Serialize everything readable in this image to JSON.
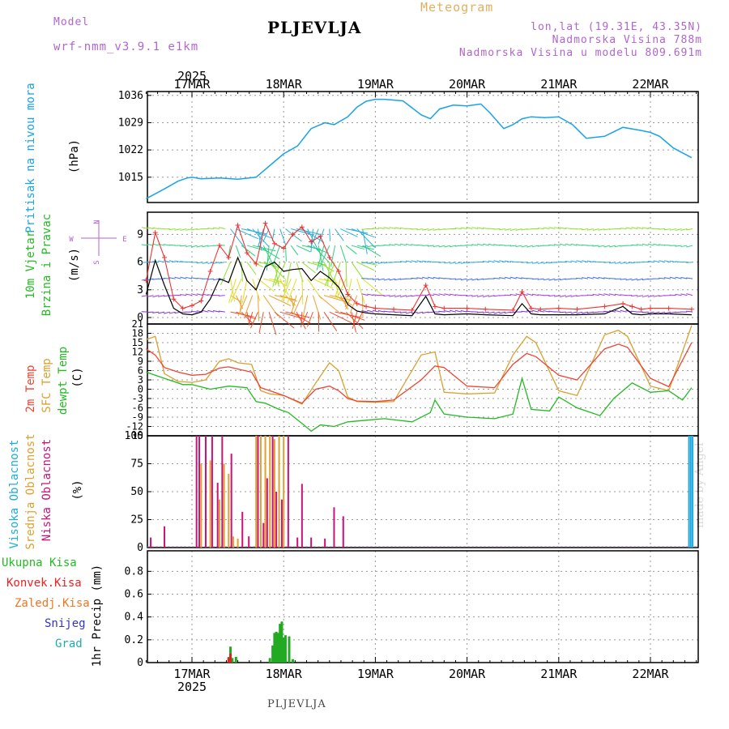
{
  "header": {
    "model_label": "Model",
    "model_name": "wrf-nmm_v3.9.1 e1km",
    "title": "Meteogram",
    "station": "PLJEVLJA",
    "coords": "lon,lat (19.31E, 43.35N)",
    "altitude": "Nadmorska Visina 788m",
    "model_altitude": "Nadmorska Visina u modelu 809.691m",
    "credit": "made by Angel"
  },
  "colors": {
    "pressure": "#1aa3e6",
    "speed": "#000000",
    "gust": "#ee3333",
    "temp2m": "#ee4433",
    "sfc": "#d9a030",
    "dewpt": "#22bb22",
    "high_cloud": "#22aadd",
    "mid_cloud": "#e0a030",
    "low_cloud": "#cc1177",
    "total_precip": "#22aa22",
    "conv_precip": "#dd2222",
    "grid": "#9a9a9a"
  },
  "chart_data": [
    {
      "type": "line",
      "panel": "pressure",
      "ylabel_lines": [
        "Pritisak na nivou mora",
        "(hPa)"
      ],
      "yticks": [
        1015,
        1022,
        1029,
        1036
      ],
      "ylim": [
        1008.5,
        1037
      ],
      "x_day": [
        -0.5,
        -0.42,
        -0.3,
        -0.15,
        -0.05,
        0.0,
        0.1,
        0.3,
        0.5,
        0.7,
        0.9,
        1.0,
        1.15,
        1.3,
        1.45,
        1.55,
        1.7,
        1.8,
        1.9,
        2.0,
        2.1,
        2.3,
        2.5,
        2.6,
        2.7,
        2.85,
        3.0,
        3.15,
        3.25,
        3.4,
        3.5,
        3.6,
        3.7,
        3.85,
        4.0,
        4.15,
        4.3,
        4.5,
        4.7,
        4.9,
        5.0,
        5.1,
        5.25,
        5.45
      ],
      "values": [
        1009.5,
        1010.5,
        1012,
        1014,
        1014.8,
        1015,
        1014.6,
        1014.8,
        1014.5,
        1015,
        1019,
        1021,
        1023,
        1027.5,
        1029,
        1028.5,
        1030.5,
        1033,
        1034.5,
        1035,
        1035,
        1034.6,
        1031,
        1030,
        1032.5,
        1033.5,
        1033.3,
        1033.8,
        1031.5,
        1027.5,
        1028.5,
        1030,
        1030.5,
        1030.3,
        1030.5,
        1028.5,
        1025,
        1025.5,
        1027.8,
        1027,
        1026.5,
        1025.5,
        1022.5,
        1020
      ],
      "units": "hPa"
    },
    {
      "type": "line",
      "panel": "wind",
      "ylabel_lines": [
        "10m Vjetar",
        "Brzina i Pravac",
        "(m/s)"
      ],
      "compass": {
        "north": "N",
        "east": "E",
        "west": "W",
        "south": "S"
      },
      "yticks": [
        0,
        3,
        6,
        9
      ],
      "ylim": [
        -0.7,
        11.4
      ],
      "series": [
        {
          "name": "speed",
          "x_day": [
            -0.5,
            -0.4,
            -0.3,
            -0.2,
            -0.1,
            0.0,
            0.1,
            0.2,
            0.3,
            0.4,
            0.5,
            0.6,
            0.7,
            0.8,
            0.9,
            1.0,
            1.1,
            1.2,
            1.3,
            1.4,
            1.5,
            1.6,
            1.7,
            1.8,
            1.9,
            2.0,
            2.2,
            2.4,
            2.55,
            2.65,
            2.75,
            3.0,
            3.2,
            3.5,
            3.6,
            3.7,
            3.8,
            4.0,
            4.2,
            4.5,
            4.7,
            4.8,
            4.9,
            5.0,
            5.2,
            5.45
          ],
          "values": [
            2.5,
            6.2,
            3.5,
            1.0,
            0.4,
            0.3,
            0.6,
            2.0,
            4.2,
            3.8,
            6.5,
            4.0,
            3.0,
            5.5,
            6.0,
            5.0,
            5.2,
            5.3,
            4.0,
            5.0,
            4.3,
            3.3,
            1.4,
            0.7,
            0.5,
            0.4,
            0.3,
            0.2,
            2.3,
            0.4,
            0.3,
            0.4,
            0.3,
            0.2,
            1.5,
            0.4,
            0.3,
            0.3,
            0.3,
            0.4,
            1.2,
            0.4,
            0.3,
            0.4,
            0.4,
            0.3
          ]
        },
        {
          "name": "gust",
          "x_day": [
            -0.5,
            -0.4,
            -0.3,
            -0.2,
            -0.1,
            0.0,
            0.1,
            0.2,
            0.3,
            0.4,
            0.5,
            0.6,
            0.7,
            0.8,
            0.9,
            1.0,
            1.1,
            1.2,
            1.3,
            1.4,
            1.5,
            1.6,
            1.7,
            1.8,
            1.9,
            2.0,
            2.2,
            2.4,
            2.55,
            2.65,
            2.75,
            3.0,
            3.2,
            3.5,
            3.6,
            3.7,
            3.8,
            4.0,
            4.2,
            4.5,
            4.7,
            4.8,
            4.9,
            5.0,
            5.2,
            5.45
          ],
          "values": [
            4.0,
            9.2,
            6.5,
            2.0,
            1.0,
            1.3,
            1.8,
            5.0,
            7.8,
            6.5,
            10.0,
            7.0,
            5.8,
            10.2,
            8.0,
            7.5,
            9.0,
            9.8,
            8.2,
            8.8,
            6.5,
            5.0,
            2.5,
            1.5,
            1.2,
            1.0,
            0.9,
            0.8,
            3.5,
            1.2,
            1.0,
            1.0,
            0.9,
            0.8,
            2.8,
            1.0,
            0.9,
            1.0,
            0.9,
            1.2,
            1.5,
            1.2,
            0.9,
            1.0,
            1.0,
            0.9
          ]
        }
      ],
      "units": "m/s"
    },
    {
      "type": "line",
      "panel": "temperature",
      "ylabel_lines": [
        "2m Temp",
        "SFC Temp",
        "dewpt Temp",
        "(C)"
      ],
      "yticks": [
        -15,
        -12,
        -9,
        -6,
        -3,
        0,
        3,
        6,
        9,
        12,
        15,
        18,
        21
      ],
      "ylim": [
        -15,
        21
      ],
      "series": [
        {
          "name": "2m Temp",
          "x_day": [
            -0.5,
            -0.4,
            -0.3,
            -0.15,
            0.0,
            0.15,
            0.3,
            0.4,
            0.5,
            0.65,
            0.75,
            0.85,
            1.0,
            1.2,
            1.35,
            1.5,
            1.6,
            1.7,
            1.8,
            2.0,
            2.2,
            2.5,
            2.65,
            2.75,
            3.0,
            3.3,
            3.5,
            3.65,
            3.75,
            4.0,
            4.2,
            4.5,
            4.65,
            4.75,
            5.0,
            5.2,
            5.45
          ],
          "values": [
            13,
            11,
            7,
            5.5,
            4.5,
            4.8,
            6.8,
            7.2,
            6.5,
            5.5,
            0.5,
            -0.5,
            -2.0,
            -4.5,
            0.0,
            1.0,
            -0.5,
            -3.0,
            -3.8,
            -4.0,
            -3.5,
            3.0,
            7.5,
            7.0,
            1.0,
            0.5,
            8.0,
            11.5,
            10.5,
            4.5,
            3.0,
            13.0,
            14.5,
            13.5,
            3.5,
            0.8,
            15.0
          ]
        },
        {
          "name": "SFC Temp",
          "x_day": [
            -0.5,
            -0.4,
            -0.3,
            -0.15,
            0.0,
            0.15,
            0.3,
            0.4,
            0.5,
            0.65,
            0.75,
            0.85,
            1.0,
            1.2,
            1.35,
            1.5,
            1.6,
            1.7,
            1.8,
            2.0,
            2.2,
            2.5,
            2.65,
            2.75,
            3.0,
            3.3,
            3.5,
            3.65,
            3.75,
            4.0,
            4.2,
            4.5,
            4.65,
            4.75,
            5.0,
            5.2,
            5.45
          ],
          "values": [
            16,
            17,
            5,
            2.5,
            2.2,
            3.0,
            9.0,
            9.8,
            8.5,
            8.0,
            -0.5,
            -1.5,
            -2.0,
            -4.8,
            2.0,
            8.5,
            6.0,
            -2.5,
            -4.0,
            -4.2,
            -4.0,
            11.0,
            12.0,
            -1.0,
            -1.5,
            -1.2,
            11.0,
            17.0,
            15.0,
            -0.5,
            -2.0,
            17.5,
            19.0,
            17.0,
            1.0,
            -0.5,
            20.5
          ]
        },
        {
          "name": "dewpt Temp",
          "x_day": [
            -0.5,
            -0.4,
            -0.3,
            -0.2,
            -0.1,
            0.0,
            0.2,
            0.4,
            0.6,
            0.7,
            0.8,
            0.95,
            1.05,
            1.2,
            1.3,
            1.4,
            1.55,
            1.7,
            1.9,
            2.1,
            2.4,
            2.6,
            2.65,
            2.75,
            3.0,
            3.3,
            3.5,
            3.6,
            3.7,
            3.9,
            4.0,
            4.2,
            4.45,
            4.6,
            4.8,
            5.0,
            5.2,
            5.35,
            5.45
          ],
          "values": [
            5.5,
            4.5,
            3.5,
            2.5,
            1.5,
            1.5,
            0.0,
            1.0,
            0.5,
            -4.0,
            -4.5,
            -6.5,
            -7.5,
            -11.0,
            -13.5,
            -11.5,
            -12.0,
            -10.5,
            -10.0,
            -9.5,
            -10.5,
            -7.5,
            -3.5,
            -8.0,
            -9.0,
            -9.5,
            -8.0,
            3.5,
            -6.5,
            -7.0,
            -2.5,
            -6.0,
            -8.5,
            -3.0,
            2.0,
            -1.0,
            -0.5,
            -3.5,
            0.5
          ]
        }
      ],
      "units": "C"
    },
    {
      "type": "bar",
      "panel": "cloud_cover",
      "ylabel_lines": [
        "Visoka Oblacnost",
        "Srednja Oblacnost",
        "Niska Oblacnost",
        "(%)"
      ],
      "yticks": [
        0,
        25,
        50,
        75,
        100
      ],
      "ylim": [
        0,
        100
      ],
      "series": [
        {
          "name": "Visoka Oblacnost",
          "x_day": [
            5.42,
            5.44,
            5.46
          ],
          "values": [
            100,
            100,
            100
          ]
        },
        {
          "name": "Srednja Oblacnost",
          "x_day": [
            0.1,
            0.2,
            0.3,
            0.35,
            0.4,
            0.45,
            0.5,
            0.7,
            0.75,
            0.8,
            0.85,
            0.9,
            0.95,
            1.0
          ],
          "values": [
            75,
            78,
            43,
            75,
            66,
            10,
            8,
            100,
            100,
            100,
            100,
            97,
            100,
            100
          ]
        },
        {
          "name": "Niska Oblacnost",
          "x_day": [
            -0.45,
            -0.3,
            0.05,
            0.08,
            0.15,
            0.22,
            0.28,
            0.33,
            0.43,
            0.55,
            0.62,
            0.72,
            0.78,
            0.82,
            0.88,
            0.92,
            0.98,
            1.05,
            1.15,
            1.2,
            1.3,
            1.45,
            1.55,
            1.65
          ],
          "values": [
            9,
            19,
            100,
            100,
            100,
            100,
            58,
            100,
            84,
            32,
            10,
            100,
            22,
            62,
            100,
            50,
            43,
            100,
            9,
            57,
            9,
            8,
            36,
            28
          ]
        }
      ],
      "units": "%"
    },
    {
      "type": "bar",
      "panel": "precipitation",
      "ylabel_lines": [
        "1hr Precip (mm)"
      ],
      "legend": [
        "Ukupna Kisa",
        "Konvek.Kisa",
        "Zaledj.Kisa",
        "Snijeg",
        "Grad"
      ],
      "legend_colors": [
        "#22bb22",
        "#ee2222",
        "#ee7722",
        "#3333cc",
        "#22aaaa"
      ],
      "yticks": [
        0,
        0.2,
        0.4,
        0.6,
        0.8
      ],
      "ylim": [
        0,
        0.98
      ],
      "series": [
        {
          "name": "Ukupna Kisa",
          "x_day": [
            0.4,
            0.42,
            0.44,
            0.48,
            0.85,
            0.88,
            0.9,
            0.92,
            0.94,
            0.96,
            0.98,
            1.0,
            1.02,
            1.06,
            1.1
          ],
          "values": [
            0.05,
            0.14,
            0.04,
            0.05,
            0.04,
            0.15,
            0.26,
            0.27,
            0.26,
            0.34,
            0.36,
            0.22,
            0.24,
            0.23,
            0.03
          ]
        },
        {
          "name": "Konvek.Kisa",
          "x_day": [
            0.4,
            0.42
          ],
          "values": [
            0.04,
            0.08
          ]
        }
      ],
      "units": "mm"
    }
  ],
  "x_axis": {
    "year": "2025",
    "day_labels": [
      "17MAR",
      "18MAR",
      "19MAR",
      "20MAR",
      "21MAR",
      "22MAR"
    ],
    "xlim_days": [
      -0.5,
      5.5
    ]
  }
}
